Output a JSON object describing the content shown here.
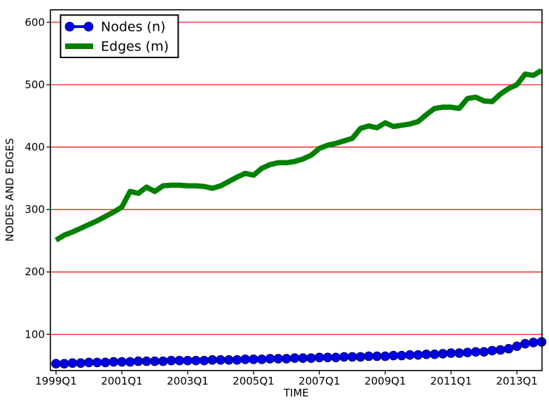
{
  "chart_data": {
    "type": "line",
    "title": "",
    "xlabel": "TIME",
    "ylabel": "NODES AND EDGES",
    "x_unit": "quarter",
    "categories": [
      "1999Q1",
      "1999Q2",
      "1999Q3",
      "1999Q4",
      "2000Q1",
      "2000Q2",
      "2000Q3",
      "2000Q4",
      "2001Q1",
      "2001Q2",
      "2001Q3",
      "2001Q4",
      "2002Q1",
      "2002Q2",
      "2002Q3",
      "2002Q4",
      "2003Q1",
      "2003Q2",
      "2003Q3",
      "2003Q4",
      "2004Q1",
      "2004Q2",
      "2004Q3",
      "2004Q4",
      "2005Q1",
      "2005Q2",
      "2005Q3",
      "2005Q4",
      "2006Q1",
      "2006Q2",
      "2006Q3",
      "2006Q4",
      "2007Q1",
      "2007Q2",
      "2007Q3",
      "2007Q4",
      "2008Q1",
      "2008Q2",
      "2008Q3",
      "2008Q4",
      "2009Q1",
      "2009Q2",
      "2009Q3",
      "2009Q4",
      "2010Q1",
      "2010Q2",
      "2010Q3",
      "2010Q4",
      "2011Q1",
      "2011Q2",
      "2011Q3",
      "2011Q4",
      "2012Q1",
      "2012Q2",
      "2012Q3",
      "2012Q4",
      "2013Q1",
      "2013Q2",
      "2013Q3",
      "2013Q4"
    ],
    "series": [
      {
        "name": "Nodes (n)",
        "style": "line-with-circle-markers",
        "color": "#0000e6",
        "marker_edge_color": "#00004d",
        "line_width": 4,
        "marker_radius": 6.4,
        "values": [
          53,
          53,
          54,
          54,
          55,
          55,
          55,
          56,
          56,
          56,
          57,
          57,
          57,
          57,
          58,
          58,
          58,
          58,
          58,
          59,
          59,
          59,
          59,
          60,
          60,
          60,
          61,
          61,
          61,
          62,
          62,
          62,
          63,
          63,
          63,
          64,
          64,
          64,
          65,
          65,
          65,
          66,
          66,
          67,
          67,
          68,
          68,
          69,
          70,
          70,
          71,
          72,
          72,
          74,
          75,
          77,
          81,
          85,
          87,
          88
        ]
      },
      {
        "name": "Edges (m)",
        "style": "thick-line",
        "color": "#008000",
        "line_width": 7.5,
        "values": [
          251,
          259,
          264,
          270,
          276,
          282,
          289,
          296,
          304,
          329,
          326,
          336,
          329,
          338,
          339,
          339,
          338,
          338,
          337,
          334,
          338,
          345,
          352,
          358,
          355,
          366,
          372,
          375,
          375,
          377,
          381,
          387,
          398,
          403,
          406,
          410,
          414,
          430,
          434,
          431,
          439,
          433,
          435,
          437,
          441,
          452,
          462,
          464,
          464,
          462,
          478,
          480,
          474,
          473,
          485,
          494,
          500,
          517,
          515,
          523
        ]
      }
    ],
    "xticks": {
      "positions": [
        0,
        8,
        16,
        24,
        32,
        40,
        48,
        56
      ],
      "labels": [
        "1999Q1",
        "2001Q1",
        "2003Q1",
        "2005Q1",
        "2007Q1",
        "2009Q1",
        "2011Q1",
        "2013Q1"
      ]
    },
    "yticks": [
      100,
      200,
      300,
      400,
      500,
      600
    ],
    "xlim": [
      -0.68,
      59.05
    ],
    "ylim": [
      42,
      620
    ],
    "grid": {
      "axis": "y",
      "color": "#ff0000",
      "line_width": 1.2,
      "on": true
    },
    "axis_color": "#000000",
    "legend_position": "upper-left"
  }
}
